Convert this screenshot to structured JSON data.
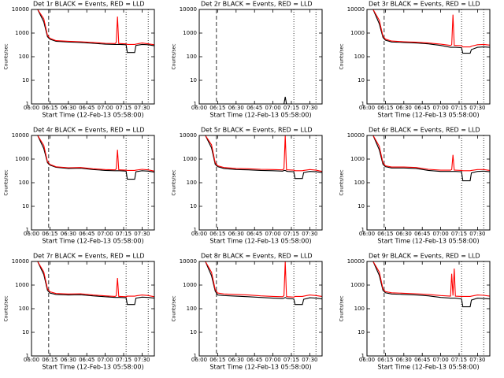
{
  "chart_data": [
    {
      "type": "line",
      "title": "Det 1r BLACK = Events, RED = LLD",
      "xlabel": "Start Time (12-Feb-13 05:58:00)",
      "ylabel": "Counts/sec",
      "log_y": true,
      "xlim": [
        "06:00",
        "07:40"
      ],
      "xticks": [
        "06:00",
        "06:15",
        "06:30",
        "06:45",
        "07:00",
        "07:15",
        "07:30"
      ],
      "ylim": [
        1,
        10000
      ],
      "yticks": [
        1,
        10,
        100,
        1000,
        10000
      ],
      "vlines": [
        {
          "x": "06:14",
          "style": "dashed"
        },
        {
          "x": "07:17",
          "style": "dotted"
        },
        {
          "x": "07:35",
          "style": "dotted"
        }
      ],
      "x": [
        "06:00",
        "06:05",
        "06:10",
        "06:13",
        "06:15",
        "06:20",
        "06:30",
        "06:40",
        "06:50",
        "07:00",
        "07:08",
        "07:09",
        "07:10",
        "07:11",
        "07:12",
        "07:17",
        "07:18",
        "07:24",
        "07:25",
        "07:30",
        "07:35",
        "07:40"
      ],
      "series": [
        {
          "name": "Events",
          "color": "#000000",
          "values": [
            10000,
            10000,
            3000,
            700,
            550,
            450,
            420,
            400,
            370,
            340,
            330,
            330,
            330,
            330,
            330,
            320,
            150,
            150,
            300,
            330,
            320,
            290
          ]
        },
        {
          "name": "LLD",
          "color": "#ff0000",
          "values": [
            10000,
            10000,
            4000,
            800,
            600,
            480,
            450,
            430,
            400,
            370,
            360,
            400,
            5000,
            360,
            360,
            350,
            330,
            330,
            340,
            380,
            350,
            320
          ]
        }
      ]
    },
    {
      "type": "line",
      "title": "Det 2r BLACK = Events, RED = LLD",
      "xlabel": "Start Time (12-Feb-13 05:58:00)",
      "ylabel": "Counts/sec",
      "log_y": true,
      "xlim": [
        "06:00",
        "07:40"
      ],
      "xticks": [
        "06:00",
        "06:15",
        "06:30",
        "06:45",
        "07:00",
        "07:15",
        "07:30"
      ],
      "ylim": [
        1,
        10000
      ],
      "yticks": [
        1,
        10,
        100,
        1000,
        10000
      ],
      "vlines": [
        {
          "x": "06:14",
          "style": "dashed"
        },
        {
          "x": "07:17",
          "style": "dotted"
        },
        {
          "x": "07:35",
          "style": "dotted"
        }
      ],
      "x": [
        "06:00",
        "06:05",
        "06:10",
        "06:13",
        "06:15",
        "06:20",
        "06:30",
        "06:40",
        "06:50",
        "07:00",
        "07:08",
        "07:09",
        "07:10",
        "07:11",
        "07:12",
        "07:17",
        "07:18",
        "07:24",
        "07:25",
        "07:30",
        "07:35",
        "07:40"
      ],
      "series": [
        {
          "name": "Events",
          "color": "#000000",
          "values": [
            1,
            1,
            1,
            1,
            1,
            1,
            1,
            1,
            1,
            1,
            1,
            1,
            2,
            1,
            1,
            1,
            1,
            1,
            1,
            1,
            1,
            1
          ]
        }
      ]
    },
    {
      "type": "line",
      "title": "Det 3r BLACK = Events, RED = LLD",
      "xlabel": "Start Time (12-Feb-13 05:58:00)",
      "ylabel": "Counts/sec",
      "log_y": true,
      "xlim": [
        "06:00",
        "07:40"
      ],
      "xticks": [
        "06:00",
        "06:15",
        "06:30",
        "06:45",
        "07:00",
        "07:15",
        "07:30"
      ],
      "ylim": [
        1,
        10000
      ],
      "yticks": [
        1,
        10,
        100,
        1000,
        10000
      ],
      "vlines": [
        {
          "x": "06:14",
          "style": "dashed"
        },
        {
          "x": "07:17",
          "style": "dotted"
        },
        {
          "x": "07:35",
          "style": "dotted"
        }
      ],
      "x": [
        "06:00",
        "06:05",
        "06:10",
        "06:13",
        "06:15",
        "06:20",
        "06:30",
        "06:40",
        "06:50",
        "07:00",
        "07:08",
        "07:09",
        "07:10",
        "07:11",
        "07:12",
        "07:17",
        "07:18",
        "07:24",
        "07:25",
        "07:30",
        "07:35",
        "07:40"
      ],
      "series": [
        {
          "name": "Events",
          "color": "#000000",
          "values": [
            10000,
            10000,
            2500,
            650,
            500,
            420,
            400,
            380,
            350,
            300,
            250,
            250,
            250,
            250,
            250,
            240,
            140,
            140,
            200,
            250,
            260,
            250
          ]
        },
        {
          "name": "LLD",
          "color": "#ff0000",
          "values": [
            10000,
            10000,
            3500,
            750,
            560,
            460,
            430,
            410,
            380,
            340,
            300,
            320,
            6000,
            300,
            300,
            290,
            260,
            260,
            280,
            320,
            330,
            310
          ]
        }
      ]
    },
    {
      "type": "line",
      "title": "Det 4r BLACK = Events, RED = LLD",
      "xlabel": "Start Time (12-Feb-13 05:58:00)",
      "ylabel": "Counts/sec",
      "log_y": true,
      "xlim": [
        "06:00",
        "07:40"
      ],
      "xticks": [
        "06:00",
        "06:15",
        "06:30",
        "06:45",
        "07:00",
        "07:15",
        "07:30"
      ],
      "ylim": [
        1,
        10000
      ],
      "yticks": [
        1,
        10,
        100,
        1000,
        10000
      ],
      "vlines": [
        {
          "x": "06:14",
          "style": "dashed"
        },
        {
          "x": "07:17",
          "style": "dotted"
        },
        {
          "x": "07:35",
          "style": "dotted"
        }
      ],
      "x": [
        "06:00",
        "06:05",
        "06:10",
        "06:13",
        "06:15",
        "06:20",
        "06:30",
        "06:40",
        "06:50",
        "07:00",
        "07:08",
        "07:09",
        "07:10",
        "07:11",
        "07:12",
        "07:17",
        "07:18",
        "07:24",
        "07:25",
        "07:30",
        "07:35",
        "07:40"
      ],
      "series": [
        {
          "name": "Events",
          "color": "#000000",
          "values": [
            10000,
            10000,
            2800,
            700,
            560,
            450,
            400,
            410,
            360,
            330,
            320,
            320,
            320,
            320,
            320,
            310,
            140,
            140,
            290,
            320,
            310,
            280
          ]
        },
        {
          "name": "LLD",
          "color": "#ff0000",
          "values": [
            10000,
            10000,
            3800,
            780,
            600,
            470,
            430,
            440,
            390,
            360,
            350,
            380,
            2500,
            350,
            350,
            340,
            330,
            330,
            340,
            370,
            350,
            310
          ]
        }
      ]
    },
    {
      "type": "line",
      "title": "Det 5r BLACK = Events, RED = LLD",
      "xlabel": "Start Time (12-Feb-13 05:58:00)",
      "ylabel": "Counts/sec",
      "log_y": true,
      "xlim": [
        "06:00",
        "07:40"
      ],
      "xticks": [
        "06:00",
        "06:15",
        "06:30",
        "06:45",
        "07:00",
        "07:15",
        "07:30"
      ],
      "ylim": [
        1,
        10000
      ],
      "yticks": [
        1,
        10,
        100,
        1000,
        10000
      ],
      "vlines": [
        {
          "x": "06:14",
          "style": "dashed"
        },
        {
          "x": "07:17",
          "style": "dotted"
        },
        {
          "x": "07:35",
          "style": "dotted"
        }
      ],
      "x": [
        "06:00",
        "06:05",
        "06:10",
        "06:13",
        "06:15",
        "06:20",
        "06:30",
        "06:40",
        "06:50",
        "07:00",
        "07:08",
        "07:09",
        "07:10",
        "07:11",
        "07:12",
        "07:17",
        "07:18",
        "07:24",
        "07:25",
        "07:30",
        "07:35",
        "07:40"
      ],
      "series": [
        {
          "name": "Events",
          "color": "#000000",
          "values": [
            10000,
            10000,
            3000,
            600,
            480,
            400,
            360,
            350,
            330,
            320,
            310,
            330,
            330,
            310,
            300,
            290,
            150,
            150,
            270,
            300,
            290,
            270
          ]
        },
        {
          "name": "LLD",
          "color": "#ff0000",
          "values": [
            10000,
            10000,
            4000,
            700,
            520,
            440,
            400,
            390,
            370,
            360,
            350,
            400,
            10000,
            350,
            350,
            340,
            320,
            320,
            330,
            360,
            340,
            300
          ]
        }
      ]
    },
    {
      "type": "line",
      "title": "Det 6r BLACK = Events, RED = LLD",
      "xlabel": "Start Time (12-Feb-13 05:58:00)",
      "ylabel": "Counts/sec",
      "log_y": true,
      "xlim": [
        "06:00",
        "07:40"
      ],
      "xticks": [
        "06:00",
        "06:15",
        "06:30",
        "06:45",
        "07:00",
        "07:15",
        "07:30"
      ],
      "ylim": [
        1,
        10000
      ],
      "yticks": [
        1,
        10,
        100,
        1000,
        10000
      ],
      "vlines": [
        {
          "x": "06:14",
          "style": "dashed"
        },
        {
          "x": "07:17",
          "style": "dotted"
        },
        {
          "x": "07:35",
          "style": "dotted"
        }
      ],
      "x": [
        "06:00",
        "06:05",
        "06:10",
        "06:13",
        "06:15",
        "06:20",
        "06:30",
        "06:40",
        "06:50",
        "07:00",
        "07:08",
        "07:09",
        "07:10",
        "07:11",
        "07:12",
        "07:17",
        "07:18",
        "07:24",
        "07:25",
        "07:30",
        "07:35",
        "07:40"
      ],
      "series": [
        {
          "name": "Events",
          "color": "#000000",
          "values": [
            10000,
            10000,
            2500,
            600,
            480,
            420,
            420,
            400,
            330,
            300,
            300,
            300,
            300,
            300,
            300,
            290,
            120,
            120,
            260,
            300,
            310,
            290
          ]
        },
        {
          "name": "LLD",
          "color": "#ff0000",
          "values": [
            10000,
            10000,
            3500,
            700,
            520,
            460,
            460,
            440,
            370,
            340,
            340,
            360,
            1500,
            340,
            340,
            330,
            320,
            320,
            330,
            360,
            360,
            330
          ]
        }
      ]
    },
    {
      "type": "line",
      "title": "Det 7r BLACK = Events, RED = LLD",
      "xlabel": "Start Time (12-Feb-13 05:58:00)",
      "ylabel": "Counts/sec",
      "log_y": true,
      "xlim": [
        "06:00",
        "07:40"
      ],
      "xticks": [
        "06:00",
        "06:15",
        "06:30",
        "06:45",
        "07:00",
        "07:15",
        "07:30"
      ],
      "ylim": [
        1,
        10000
      ],
      "yticks": [
        1,
        10,
        100,
        1000,
        10000
      ],
      "vlines": [
        {
          "x": "06:14",
          "style": "dashed"
        },
        {
          "x": "07:17",
          "style": "dotted"
        },
        {
          "x": "07:35",
          "style": "dotted"
        }
      ],
      "x": [
        "06:00",
        "06:05",
        "06:10",
        "06:13",
        "06:15",
        "06:20",
        "06:30",
        "06:40",
        "06:50",
        "07:00",
        "07:08",
        "07:09",
        "07:10",
        "07:11",
        "07:12",
        "07:17",
        "07:18",
        "07:24",
        "07:25",
        "07:30",
        "07:35",
        "07:40"
      ],
      "series": [
        {
          "name": "Events",
          "color": "#000000",
          "values": [
            10000,
            10000,
            2800,
            600,
            460,
            400,
            380,
            390,
            350,
            320,
            300,
            300,
            300,
            300,
            300,
            290,
            150,
            150,
            280,
            310,
            300,
            280
          ]
        },
        {
          "name": "LLD",
          "color": "#ff0000",
          "values": [
            10000,
            10000,
            3600,
            700,
            520,
            440,
            420,
            430,
            380,
            350,
            330,
            350,
            2000,
            330,
            330,
            320,
            340,
            340,
            350,
            380,
            360,
            320
          ]
        }
      ]
    },
    {
      "type": "line",
      "title": "Det 8r BLACK = Events, RED = LLD",
      "xlabel": "Start Time (12-Feb-13 05:58:00)",
      "ylabel": "Counts/sec",
      "log_y": true,
      "xlim": [
        "06:00",
        "07:40"
      ],
      "xticks": [
        "06:00",
        "06:15",
        "06:30",
        "06:45",
        "07:00",
        "07:15",
        "07:30"
      ],
      "ylim": [
        1,
        10000
      ],
      "yticks": [
        1,
        10,
        100,
        1000,
        10000
      ],
      "vlines": [
        {
          "x": "06:14",
          "style": "dashed"
        },
        {
          "x": "07:17",
          "style": "dotted"
        },
        {
          "x": "07:35",
          "style": "dotted"
        }
      ],
      "x": [
        "06:00",
        "06:05",
        "06:10",
        "06:13",
        "06:15",
        "06:20",
        "06:30",
        "06:40",
        "06:50",
        "07:00",
        "07:08",
        "07:09",
        "07:10",
        "07:11",
        "07:12",
        "07:17",
        "07:18",
        "07:24",
        "07:25",
        "07:30",
        "07:35",
        "07:40"
      ],
      "series": [
        {
          "name": "Events",
          "color": "#000000",
          "values": [
            10000,
            10000,
            2500,
            550,
            380,
            360,
            340,
            320,
            300,
            280,
            270,
            280,
            300,
            280,
            270,
            260,
            150,
            150,
            250,
            290,
            280,
            260
          ]
        },
        {
          "name": "LLD",
          "color": "#ff0000",
          "values": [
            10000,
            10000,
            3500,
            650,
            460,
            420,
            400,
            380,
            350,
            330,
            320,
            360,
            10000,
            330,
            320,
            310,
            330,
            330,
            340,
            380,
            360,
            330
          ]
        }
      ]
    },
    {
      "type": "line",
      "title": "Det 9r BLACK = Events, RED = LLD",
      "xlabel": "Start Time (12-Feb-13 05:58:00)",
      "ylabel": "Counts/sec",
      "log_y": true,
      "xlim": [
        "06:00",
        "07:40"
      ],
      "xticks": [
        "06:00",
        "06:15",
        "06:30",
        "06:45",
        "07:00",
        "07:15",
        "07:30"
      ],
      "ylim": [
        1,
        10000
      ],
      "yticks": [
        1,
        10,
        100,
        1000,
        10000
      ],
      "vlines": [
        {
          "x": "06:14",
          "style": "dashed"
        },
        {
          "x": "07:17",
          "style": "dotted"
        },
        {
          "x": "07:35",
          "style": "dotted"
        }
      ],
      "x": [
        "06:00",
        "06:05",
        "06:10",
        "06:13",
        "06:15",
        "06:20",
        "06:30",
        "06:40",
        "06:50",
        "07:00",
        "07:08",
        "07:09",
        "07:10",
        "07:11",
        "07:12",
        "07:17",
        "07:18",
        "07:24",
        "07:25",
        "07:30",
        "07:35",
        "07:40"
      ],
      "series": [
        {
          "name": "Events",
          "color": "#000000",
          "values": [
            10000,
            10000,
            2600,
            600,
            470,
            420,
            400,
            380,
            350,
            300,
            280,
            280,
            280,
            280,
            280,
            260,
            120,
            120,
            230,
            280,
            270,
            260
          ]
        },
        {
          "name": "LLD",
          "color": "#ff0000",
          "values": [
            10000,
            10000,
            3600,
            700,
            530,
            470,
            450,
            430,
            400,
            360,
            340,
            3000,
            360,
            5000,
            340,
            330,
            330,
            330,
            340,
            380,
            370,
            340
          ]
        }
      ]
    }
  ]
}
